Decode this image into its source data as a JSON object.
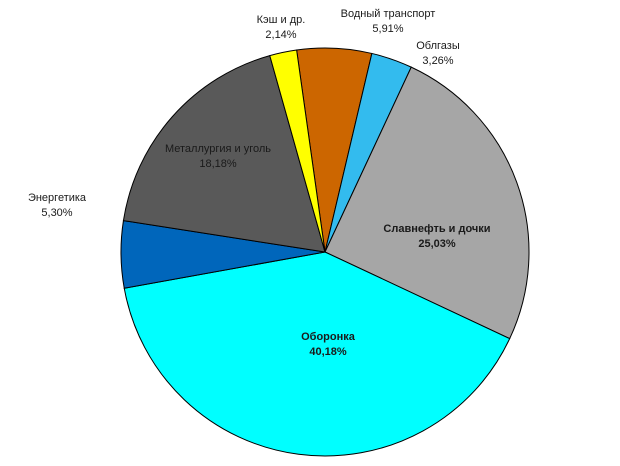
{
  "chart_data": {
    "type": "pie",
    "title": "",
    "start_angle_deg": -8.0,
    "direction": "clockwise",
    "slices": [
      {
        "name": "Водный транспорт",
        "pct_label": "5,91%",
        "value": 5.91,
        "color": "#cc6600"
      },
      {
        "name": "Облгазы",
        "pct_label": "3,26%",
        "value": 3.26,
        "color": "#33bbee"
      },
      {
        "name": "Славнефть и дочки",
        "pct_label": "25,03%",
        "value": 25.03,
        "color": "#a6a6a6"
      },
      {
        "name": "Оборонка",
        "pct_label": "40,18%",
        "value": 40.18,
        "color": "#00ffff"
      },
      {
        "name": "Энергетика",
        "pct_label": "5,30%",
        "value": 5.3,
        "color": "#0066bb"
      },
      {
        "name": "Металлургия и уголь",
        "pct_label": "18,18%",
        "value": 18.18,
        "color": "#595959"
      },
      {
        "name": "Кэш и др.",
        "pct_label": "2,14%",
        "value": 2.14,
        "color": "#ffff00"
      }
    ]
  }
}
